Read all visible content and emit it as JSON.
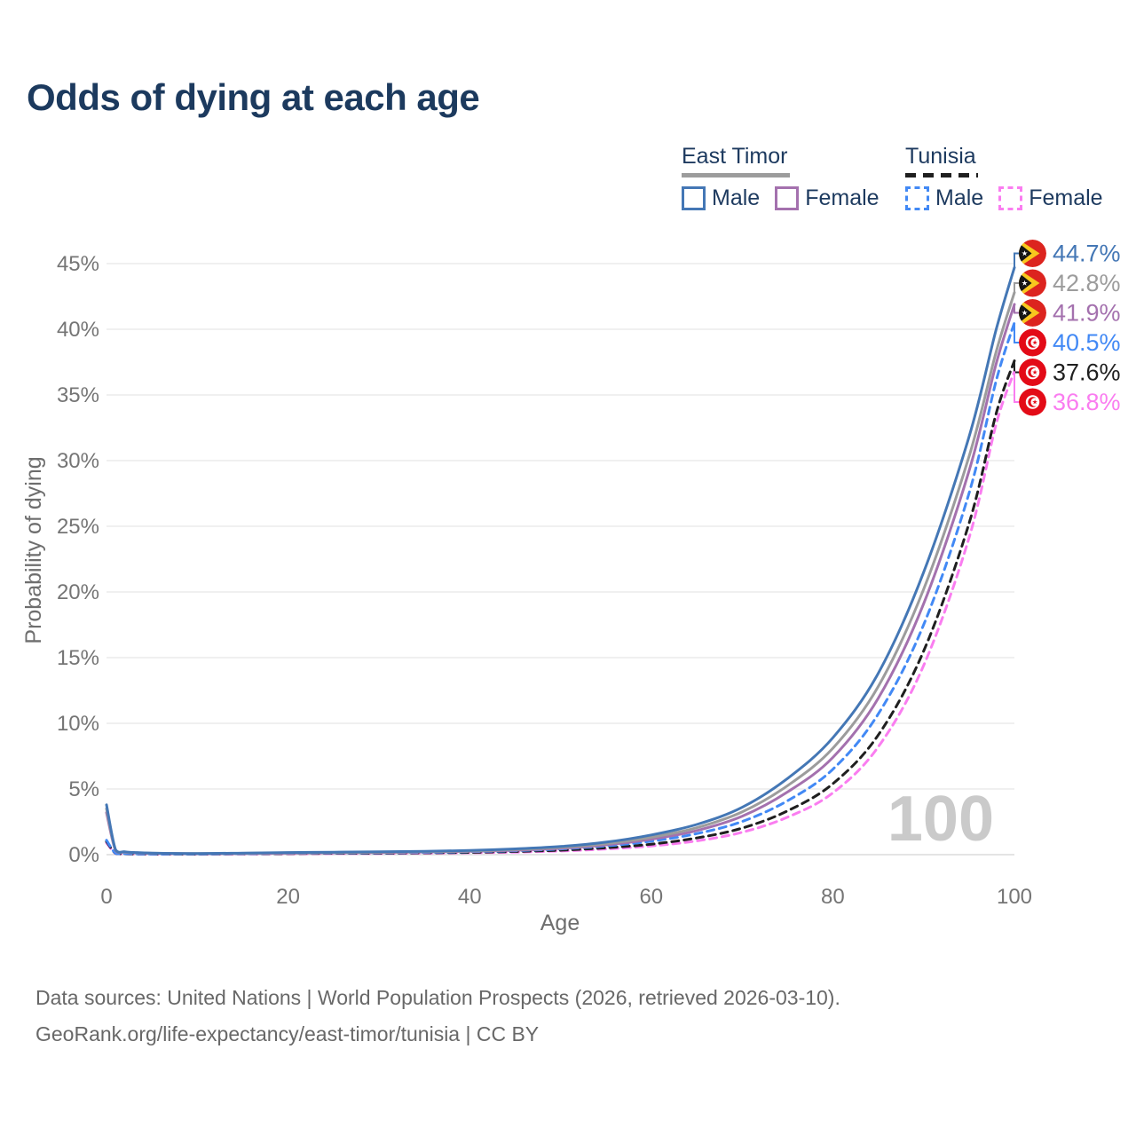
{
  "title": "Odds of dying at each age",
  "legend": {
    "groups": [
      {
        "label": "East Timor",
        "line": {
          "style": "solid",
          "color": "#9c9c9c"
        },
        "items": [
          {
            "label": "Male",
            "color": "#4477b5",
            "dashed": false
          },
          {
            "label": "Female",
            "color": "#a471ae",
            "dashed": false
          }
        ]
      },
      {
        "label": "Tunisia",
        "line": {
          "style": "dashed",
          "color": "#1f1f1f"
        },
        "items": [
          {
            "label": "Male",
            "color": "#4289f5",
            "dashed": true
          },
          {
            "label": "Female",
            "color": "#fa7df0",
            "dashed": true
          }
        ]
      }
    ]
  },
  "chart_data": {
    "type": "line",
    "title": "Odds of dying at each age",
    "xlabel": "Age",
    "ylabel": "Probability of dying",
    "xlim": [
      0,
      100
    ],
    "ylim_percent": [
      0,
      47
    ],
    "x_ticks": [
      0,
      20,
      40,
      60,
      80,
      100
    ],
    "y_ticks_percent": [
      0,
      5,
      10,
      15,
      20,
      25,
      30,
      35,
      40,
      45
    ],
    "grid": true,
    "legend_position": "top-right",
    "watermark": "100",
    "ages": [
      0,
      1,
      2,
      3,
      5,
      10,
      15,
      20,
      25,
      30,
      35,
      40,
      45,
      50,
      55,
      60,
      65,
      70,
      75,
      80,
      85,
      90,
      95,
      98,
      100
    ],
    "series": [
      {
        "name": "East Timor Male",
        "country": "East Timor",
        "sex": "Male",
        "color": "#4477b5",
        "dashed": false,
        "flag": "east-timor",
        "end_label": "44.7%",
        "values_percent": [
          3.8,
          0.38,
          0.22,
          0.17,
          0.12,
          0.09,
          0.12,
          0.16,
          0.19,
          0.22,
          0.26,
          0.32,
          0.44,
          0.62,
          0.95,
          1.5,
          2.3,
          3.6,
          5.8,
          8.9,
          13.8,
          21.5,
          31.8,
          40.0,
          44.7
        ]
      },
      {
        "name": "East Timor Both sexes",
        "country": "East Timor",
        "sex": "All",
        "color": "#9c9c9c",
        "dashed": false,
        "flag": "east-timor",
        "end_label": "42.8%",
        "values_percent": [
          3.5,
          0.35,
          0.2,
          0.15,
          0.11,
          0.08,
          0.1,
          0.14,
          0.17,
          0.19,
          0.23,
          0.28,
          0.39,
          0.55,
          0.84,
          1.32,
          2.05,
          3.25,
          5.25,
          8.1,
          12.8,
          20.2,
          30.3,
          38.3,
          42.8
        ]
      },
      {
        "name": "East Timor Female",
        "country": "East Timor",
        "sex": "Female",
        "color": "#a471ae",
        "dashed": false,
        "flag": "east-timor",
        "end_label": "41.9%",
        "values_percent": [
          3.2,
          0.32,
          0.19,
          0.14,
          0.1,
          0.07,
          0.09,
          0.11,
          0.14,
          0.16,
          0.2,
          0.25,
          0.34,
          0.48,
          0.74,
          1.17,
          1.83,
          2.92,
          4.77,
          7.4,
          11.9,
          19.1,
          29.2,
          37.4,
          41.9
        ]
      },
      {
        "name": "Tunisia Male",
        "country": "Tunisia",
        "sex": "Male",
        "color": "#4289f5",
        "dashed": true,
        "flag": "tunisia",
        "end_label": "40.5%",
        "values_percent": [
          1.1,
          0.11,
          0.08,
          0.06,
          0.05,
          0.04,
          0.07,
          0.1,
          0.12,
          0.14,
          0.17,
          0.22,
          0.3,
          0.43,
          0.66,
          1.02,
          1.6,
          2.52,
          4.1,
          6.5,
          10.7,
          17.5,
          27.5,
          36.1,
          40.5
        ]
      },
      {
        "name": "Tunisia Both sexes",
        "country": "Tunisia",
        "sex": "All",
        "color": "#1f1f1f",
        "dashed": true,
        "flag": "tunisia",
        "end_label": "37.6%",
        "values_percent": [
          1.0,
          0.1,
          0.07,
          0.05,
          0.045,
          0.035,
          0.06,
          0.08,
          0.1,
          0.11,
          0.14,
          0.17,
          0.24,
          0.34,
          0.52,
          0.8,
          1.27,
          2.02,
          3.33,
          5.4,
          9.1,
          15.5,
          25.2,
          33.6,
          37.6
        ]
      },
      {
        "name": "Tunisia Female",
        "country": "Tunisia",
        "sex": "Female",
        "color": "#fa7df0",
        "dashed": true,
        "flag": "tunisia",
        "end_label": "36.8%",
        "values_percent": [
          0.9,
          0.09,
          0.06,
          0.05,
          0.04,
          0.03,
          0.05,
          0.06,
          0.08,
          0.09,
          0.11,
          0.14,
          0.19,
          0.28,
          0.43,
          0.66,
          1.05,
          1.7,
          2.85,
          4.7,
          8.2,
          14.4,
          24.1,
          32.8,
          36.8
        ]
      }
    ]
  },
  "footer": {
    "line1": "Data sources: United Nations | World Population Prospects (2026, retrieved 2026-03-10).",
    "line2": "GeoRank.org/life-expectancy/east-timor/tunisia | CC BY"
  }
}
